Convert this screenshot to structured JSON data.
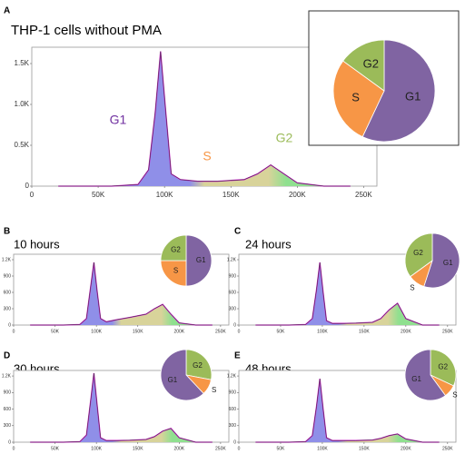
{
  "chart_data": [
    {
      "type": "area",
      "panel": "A",
      "title": "THP-1 cells without PMA",
      "x": [
        20000,
        60000,
        80000,
        88000,
        93000,
        97000,
        101000,
        105000,
        112000,
        125000,
        140000,
        160000,
        170000,
        180000,
        190000,
        200000,
        220000,
        240000
      ],
      "values": [
        0,
        0,
        20,
        200,
        900,
        1650,
        900,
        150,
        80,
        60,
        60,
        80,
        150,
        260,
        150,
        40,
        0,
        0
      ],
      "xlim": [
        0,
        260000
      ],
      "xticks": [
        0,
        {
          "value": 50000,
          "label": "50K"
        },
        {
          "value": 100000,
          "label": "100K"
        },
        {
          "value": 150000,
          "label": "150K"
        },
        {
          "value": 200000,
          "label": "200K"
        },
        {
          "value": 250000,
          "label": "250K"
        }
      ],
      "ylim": [
        0,
        1700
      ],
      "yticks": [
        0,
        {
          "value": 500,
          "label": "0.5K"
        },
        {
          "value": 1000,
          "label": "1.0K"
        },
        {
          "value": 1500,
          "label": "1.5K"
        }
      ],
      "annotations": [
        {
          "text": "G1",
          "color": "#7030a0"
        },
        {
          "text": "S",
          "color": "#f79646"
        },
        {
          "text": "G2",
          "color": "#9bbb59"
        }
      ]
    },
    {
      "type": "pie",
      "categories": [
        "G1",
        "S",
        "G2"
      ],
      "values": [
        57,
        28,
        15
      ],
      "colors": [
        "#8064a2",
        "#f79646",
        "#9bbb59"
      ]
    },
    {
      "type": "area",
      "panel": "B",
      "title": "10 hours",
      "x": [
        20000,
        60000,
        80000,
        88000,
        93000,
        97000,
        101000,
        105000,
        112000,
        125000,
        140000,
        160000,
        170000,
        180000,
        190000,
        200000,
        220000,
        240000
      ],
      "values": [
        0,
        0,
        10,
        120,
        700,
        1150,
        600,
        120,
        60,
        100,
        140,
        200,
        300,
        380,
        200,
        40,
        0,
        0
      ],
      "xlim": [
        0,
        260000
      ],
      "xticks": [
        0,
        {
          "value": 50000,
          "label": "50K"
        },
        {
          "value": 100000,
          "label": "100K"
        },
        {
          "value": 150000,
          "label": "150K"
        },
        {
          "value": 200000,
          "label": "200K"
        },
        {
          "value": 250000,
          "label": "250K"
        }
      ],
      "ylim": [
        0,
        1300
      ],
      "yticks": [
        0,
        300,
        600,
        900,
        {
          "value": 1200,
          "label": "1.2K"
        }
      ]
    },
    {
      "type": "pie",
      "categories": [
        "G1",
        "S",
        "G2"
      ],
      "values": [
        50,
        25,
        25
      ],
      "colors": [
        "#8064a2",
        "#f79646",
        "#9bbb59"
      ]
    },
    {
      "type": "area",
      "panel": "C",
      "title": "24 hours",
      "x": [
        20000,
        60000,
        80000,
        88000,
        93000,
        97000,
        101000,
        105000,
        112000,
        125000,
        140000,
        160000,
        170000,
        180000,
        190000,
        200000,
        220000,
        240000
      ],
      "values": [
        0,
        0,
        10,
        120,
        650,
        1150,
        600,
        80,
        30,
        30,
        35,
        50,
        120,
        280,
        400,
        120,
        0,
        0
      ],
      "xlim": [
        0,
        260000
      ],
      "xticks": [
        0,
        {
          "value": 50000,
          "label": "50K"
        },
        {
          "value": 100000,
          "label": "100K"
        },
        {
          "value": 150000,
          "label": "150K"
        },
        {
          "value": 200000,
          "label": "200K"
        },
        {
          "value": 250000,
          "label": "250K"
        }
      ],
      "ylim": [
        0,
        1300
      ],
      "yticks": [
        0,
        300,
        600,
        900,
        {
          "value": 1200,
          "label": "1.2K"
        }
      ]
    },
    {
      "type": "pie",
      "categories": [
        "G1",
        "S",
        "G2"
      ],
      "values": [
        55,
        10,
        35
      ],
      "colors": [
        "#8064a2",
        "#f79646",
        "#9bbb59"
      ]
    },
    {
      "type": "area",
      "panel": "D",
      "title": "30 hours",
      "x": [
        20000,
        60000,
        80000,
        88000,
        93000,
        97000,
        101000,
        105000,
        112000,
        125000,
        140000,
        160000,
        170000,
        180000,
        190000,
        200000,
        220000,
        240000
      ],
      "values": [
        0,
        0,
        10,
        130,
        750,
        1250,
        650,
        80,
        30,
        30,
        35,
        50,
        100,
        200,
        250,
        80,
        0,
        0
      ],
      "xlim": [
        0,
        260000
      ],
      "xticks": [
        0,
        {
          "value": 50000,
          "label": "50K"
        },
        {
          "value": 100000,
          "label": "100K"
        },
        {
          "value": 150000,
          "label": "150K"
        },
        {
          "value": 200000,
          "label": "200K"
        },
        {
          "value": 250000,
          "label": "250K"
        }
      ],
      "ylim": [
        0,
        1300
      ],
      "yticks": [
        0,
        300,
        600,
        900,
        {
          "value": 1200,
          "label": "1.2K"
        }
      ]
    },
    {
      "type": "pie",
      "categories": [
        "G2",
        "S",
        "G1"
      ],
      "values": [
        28,
        10,
        62
      ],
      "colors": [
        "#9bbb59",
        "#f79646",
        "#8064a2"
      ]
    },
    {
      "type": "area",
      "panel": "E",
      "title": "48 hours",
      "x": [
        20000,
        60000,
        80000,
        88000,
        93000,
        97000,
        101000,
        105000,
        112000,
        125000,
        140000,
        160000,
        170000,
        180000,
        190000,
        200000,
        220000,
        240000
      ],
      "values": [
        0,
        0,
        10,
        120,
        650,
        1150,
        600,
        80,
        30,
        30,
        30,
        40,
        70,
        120,
        150,
        60,
        0,
        0
      ],
      "xlim": [
        0,
        260000
      ],
      "xticks": [
        0,
        {
          "value": 50000,
          "label": "50K"
        },
        {
          "value": 100000,
          "label": "100K"
        },
        {
          "value": 150000,
          "label": "150K"
        },
        {
          "value": 200000,
          "label": "200K"
        },
        {
          "value": 250000,
          "label": "250K"
        }
      ],
      "ylim": [
        0,
        1300
      ],
      "yticks": [
        0,
        300,
        600,
        900,
        {
          "value": 1200,
          "label": "1.2K"
        }
      ]
    },
    {
      "type": "pie",
      "categories": [
        "G2",
        "S",
        "G1"
      ],
      "values": [
        32,
        8,
        60
      ],
      "colors": [
        "#9bbb59",
        "#f79646",
        "#8064a2"
      ]
    }
  ]
}
